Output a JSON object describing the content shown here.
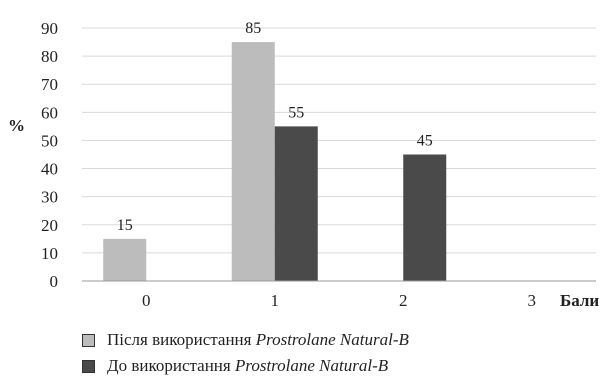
{
  "chart_data": {
    "type": "bar",
    "categories": [
      "0",
      "1",
      "2",
      "3"
    ],
    "series": [
      {
        "name": "Після використання Prostrolane Natural-B",
        "name_plain": "Після використання ",
        "name_italic": "Prostrolane Natural-B",
        "color": "#bcbcbc",
        "values": [
          15,
          85,
          0,
          0
        ]
      },
      {
        "name": "До використання Prostrolane Natural-B",
        "name_plain": "До використання ",
        "name_italic": "Prostrolane Natural-B",
        "color": "#4a4a4a",
        "values": [
          0,
          55,
          45,
          0
        ]
      }
    ],
    "data_labels": [
      {
        "series": 0,
        "category": "0",
        "text": "15"
      },
      {
        "series": 0,
        "category": "1",
        "text": "85"
      },
      {
        "series": 1,
        "category": "1",
        "text": "55"
      },
      {
        "series": 1,
        "category": "2",
        "text": "45"
      }
    ],
    "xlabel": "Бали",
    "ylabel": "%",
    "ylim": [
      0,
      90
    ],
    "yticks": [
      0,
      10,
      20,
      30,
      40,
      50,
      60,
      70,
      80,
      90
    ],
    "grid": true,
    "legend_position": "bottom"
  }
}
